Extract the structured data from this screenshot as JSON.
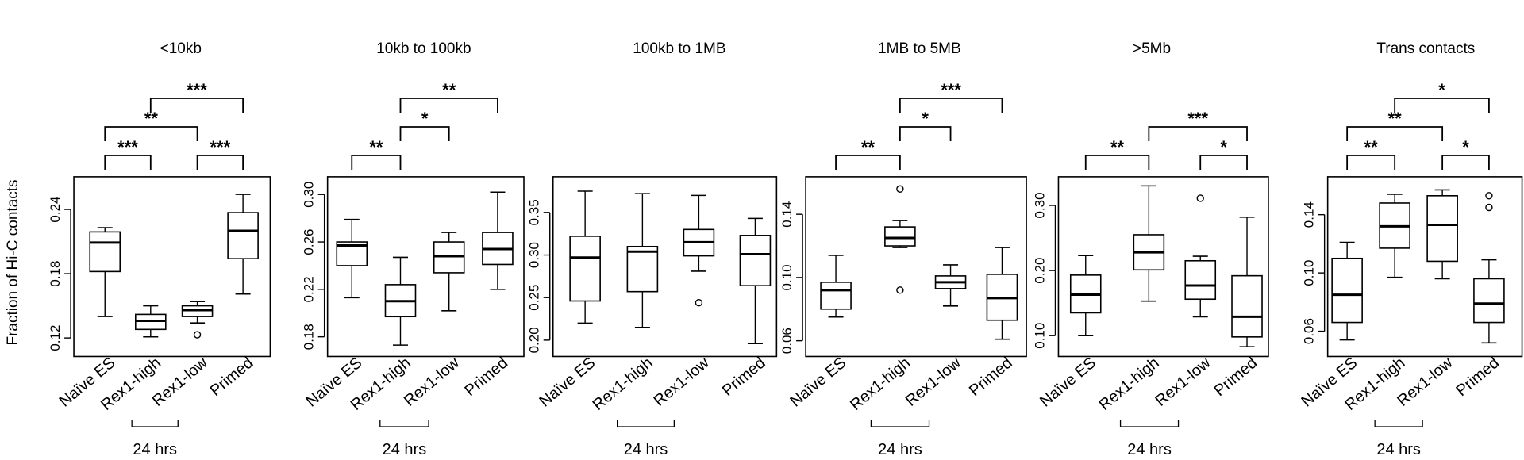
{
  "figure": {
    "ylabel": "Fraction of Hi-C contacts",
    "group_label": "24 hrs"
  },
  "chart_data": [
    {
      "type": "box",
      "title": "<10kb",
      "ylabel": "Fraction of Hi-C contacts",
      "categories": [
        "Naïve ES",
        "Rex1-high",
        "Rex1-low",
        "Primed"
      ],
      "ylim": [
        0.11,
        0.265
      ],
      "yticks": [
        0.12,
        0.18,
        0.24
      ],
      "tick_labels": [
        "0.12",
        "0.18",
        "0.24"
      ],
      "boxes": [
        {
          "whislo": 0.14,
          "q1": 0.182,
          "med": 0.209,
          "q3": 0.219,
          "whishi": 0.223,
          "fliers": []
        },
        {
          "whislo": 0.121,
          "q1": 0.128,
          "med": 0.136,
          "q3": 0.142,
          "whishi": 0.15,
          "fliers": []
        },
        {
          "whislo": 0.134,
          "q1": 0.14,
          "med": 0.146,
          "q3": 0.15,
          "whishi": 0.154,
          "fliers": [
            0.123
          ]
        },
        {
          "whislo": 0.161,
          "q1": 0.194,
          "med": 0.22,
          "q3": 0.237,
          "whishi": 0.254,
          "fliers": []
        }
      ],
      "comparisons": [
        {
          "from": 0,
          "to": 1,
          "label": "***",
          "level": 0
        },
        {
          "from": 2,
          "to": 3,
          "label": "***",
          "level": 0
        },
        {
          "from": 0,
          "to": 2,
          "label": "**",
          "level": 1
        },
        {
          "from": 1,
          "to": 3,
          "label": "***",
          "level": 2
        }
      ]
    },
    {
      "type": "box",
      "title": "10kb to 100kb",
      "categories": [
        "Naïve ES",
        "Rex1-high",
        "Rex1-low",
        "Primed"
      ],
      "ylim": [
        0.17,
        0.31
      ],
      "yticks": [
        0.18,
        0.22,
        0.26,
        0.3
      ],
      "tick_labels": [
        "0.18",
        "0.22",
        "0.26",
        "0.30"
      ],
      "boxes": [
        {
          "whislo": 0.213,
          "q1": 0.24,
          "med": 0.257,
          "q3": 0.26,
          "whishi": 0.279,
          "fliers": []
        },
        {
          "whislo": 0.173,
          "q1": 0.197,
          "med": 0.21,
          "q3": 0.224,
          "whishi": 0.247,
          "fliers": []
        },
        {
          "whislo": 0.202,
          "q1": 0.234,
          "med": 0.248,
          "q3": 0.26,
          "whishi": 0.268,
          "fliers": []
        },
        {
          "whislo": 0.22,
          "q1": 0.241,
          "med": 0.254,
          "q3": 0.268,
          "whishi": 0.302,
          "fliers": []
        }
      ],
      "comparisons": [
        {
          "from": 0,
          "to": 1,
          "label": "**",
          "level": 0
        },
        {
          "from": 1,
          "to": 2,
          "label": "*",
          "level": 1
        },
        {
          "from": 1,
          "to": 3,
          "label": "**",
          "level": 2
        }
      ]
    },
    {
      "type": "box",
      "title": "100kb to 1MB",
      "categories": [
        "Naïve ES",
        "Rex1-high",
        "Rex1-low",
        "Primed"
      ],
      "ylim": [
        0.19,
        0.385
      ],
      "yticks": [
        0.2,
        0.25,
        0.3,
        0.35
      ],
      "tick_labels": [
        "0.20",
        "0.25",
        "0.30",
        "0.35"
      ],
      "boxes": [
        {
          "whislo": 0.22,
          "q1": 0.246,
          "med": 0.297,
          "q3": 0.322,
          "whishi": 0.375,
          "fliers": []
        },
        {
          "whislo": 0.215,
          "q1": 0.257,
          "med": 0.304,
          "q3": 0.31,
          "whishi": 0.372,
          "fliers": []
        },
        {
          "whislo": 0.281,
          "q1": 0.299,
          "med": 0.315,
          "q3": 0.33,
          "whishi": 0.37,
          "fliers": [
            0.244
          ]
        },
        {
          "whislo": 0.196,
          "q1": 0.264,
          "med": 0.301,
          "q3": 0.323,
          "whishi": 0.343,
          "fliers": []
        }
      ],
      "comparisons": []
    },
    {
      "type": "box",
      "title": "1MB to 5MB",
      "categories": [
        "Naïve ES",
        "Rex1-high",
        "Rex1-low",
        "Primed"
      ],
      "ylim": [
        0.055,
        0.16
      ],
      "yticks": [
        0.06,
        0.1,
        0.14
      ],
      "tick_labels": [
        "0.06",
        "0.10",
        "0.14"
      ],
      "boxes": [
        {
          "whislo": 0.075,
          "q1": 0.08,
          "med": 0.092,
          "q3": 0.097,
          "whishi": 0.114,
          "fliers": []
        },
        {
          "whislo": 0.119,
          "q1": 0.12,
          "med": 0.125,
          "q3": 0.132,
          "whishi": 0.136,
          "fliers": [
            0.156,
            0.092
          ]
        },
        {
          "whislo": 0.082,
          "q1": 0.093,
          "med": 0.097,
          "q3": 0.101,
          "whishi": 0.108,
          "fliers": []
        },
        {
          "whislo": 0.061,
          "q1": 0.073,
          "med": 0.087,
          "q3": 0.102,
          "whishi": 0.119,
          "fliers": []
        }
      ],
      "comparisons": [
        {
          "from": 0,
          "to": 1,
          "label": "**",
          "level": 0
        },
        {
          "from": 1,
          "to": 2,
          "label": "*",
          "level": 1
        },
        {
          "from": 1,
          "to": 3,
          "label": "***",
          "level": 2
        }
      ]
    },
    {
      "type": "box",
      "title": ">5Mb",
      "categories": [
        "Naïve ES",
        "Rex1-high",
        "Rex1-low",
        "Primed"
      ],
      "ylim": [
        0.08,
        0.335
      ],
      "yticks": [
        0.1,
        0.2,
        0.3
      ],
      "tick_labels": [
        "0.10",
        "0.20",
        "0.30"
      ],
      "boxes": [
        {
          "whislo": 0.1,
          "q1": 0.135,
          "med": 0.163,
          "q3": 0.193,
          "whishi": 0.223,
          "fliers": []
        },
        {
          "whislo": 0.153,
          "q1": 0.201,
          "med": 0.228,
          "q3": 0.255,
          "whishi": 0.33,
          "fliers": []
        },
        {
          "whislo": 0.129,
          "q1": 0.156,
          "med": 0.177,
          "q3": 0.215,
          "whishi": 0.222,
          "fliers": [
            0.311
          ]
        },
        {
          "whislo": 0.083,
          "q1": 0.098,
          "med": 0.129,
          "q3": 0.192,
          "whishi": 0.282,
          "fliers": []
        }
      ],
      "comparisons": [
        {
          "from": 0,
          "to": 1,
          "label": "**",
          "level": 0
        },
        {
          "from": 2,
          "to": 3,
          "label": "*",
          "level": 0
        },
        {
          "from": 1,
          "to": 3,
          "label": "***",
          "level": 1
        }
      ]
    },
    {
      "type": "box",
      "title": "Trans contacts",
      "categories": [
        "Naïve ES",
        "Rex1-high",
        "Rex1-low",
        "Primed"
      ],
      "ylim": [
        0.048,
        0.162
      ],
      "yticks": [
        0.06,
        0.1,
        0.14
      ],
      "tick_labels": [
        "0.06",
        "0.10",
        "0.14"
      ],
      "boxes": [
        {
          "whislo": 0.054,
          "q1": 0.066,
          "med": 0.085,
          "q3": 0.11,
          "whishi": 0.121,
          "fliers": []
        },
        {
          "whislo": 0.097,
          "q1": 0.117,
          "med": 0.132,
          "q3": 0.148,
          "whishi": 0.154,
          "fliers": []
        },
        {
          "whislo": 0.096,
          "q1": 0.108,
          "med": 0.133,
          "q3": 0.153,
          "whishi": 0.157,
          "fliers": []
        },
        {
          "whislo": 0.052,
          "q1": 0.066,
          "med": 0.079,
          "q3": 0.096,
          "whishi": 0.109,
          "fliers": [
            0.153,
            0.145
          ]
        }
      ],
      "comparisons": [
        {
          "from": 0,
          "to": 1,
          "label": "**",
          "level": 0
        },
        {
          "from": 2,
          "to": 3,
          "label": "*",
          "level": 0
        },
        {
          "from": 0,
          "to": 2,
          "label": "**",
          "level": 1
        },
        {
          "from": 1,
          "to": 3,
          "label": "*",
          "level": 2
        }
      ]
    }
  ]
}
